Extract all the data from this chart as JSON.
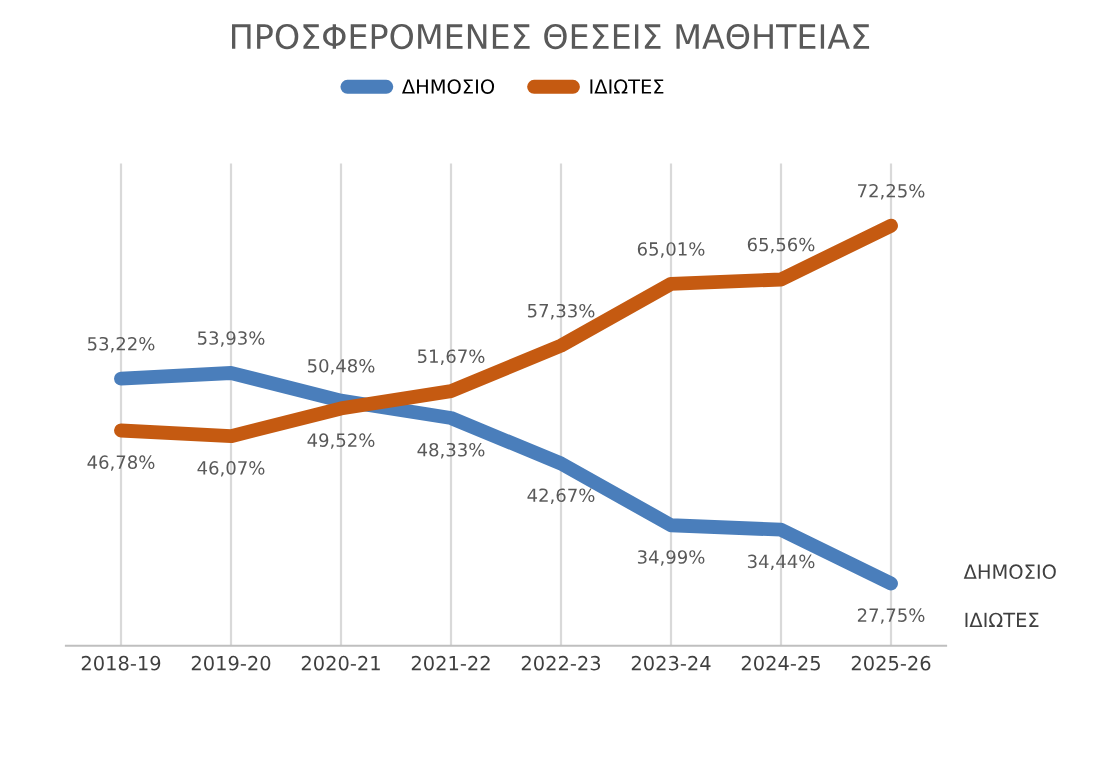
{
  "chart_data": {
    "type": "line",
    "title": "ΠΡΟΣΦΕΡΟΜΕΝΕΣ ΘΕΣΕΙΣ ΜΑΘΗΤΕΙΑΣ",
    "categories": [
      "2018-19",
      "2019-20",
      "2020-21",
      "2021-22",
      "2022-23",
      "2023-24",
      "2024-25",
      "2025-26"
    ],
    "series": [
      {
        "name": "ΔΗΜΟΣΙΟ",
        "color": "#4a7ebb",
        "values": [
          53.22,
          53.93,
          50.48,
          48.33,
          42.67,
          34.99,
          34.44,
          27.75
        ],
        "value_labels": [
          "53,22%",
          "53,93%",
          "50,48%",
          "48,33%",
          "42,67%",
          "34,99%",
          "34,44%",
          "27,75%"
        ]
      },
      {
        "name": "ΙΔΙΩΤΕΣ",
        "color": "#c55a11",
        "values": [
          46.78,
          46.07,
          49.52,
          51.67,
          57.33,
          65.01,
          65.56,
          72.25
        ],
        "value_labels": [
          "46,78%",
          "46,07%",
          "49,52%",
          "51,67%",
          "57,33%",
          "65,01%",
          "65,56%",
          "72,25%"
        ]
      }
    ],
    "ylim": [
      20,
      80
    ],
    "tick_labels": "x",
    "grid": "x",
    "legend": "top",
    "marker": "none",
    "line_style": "solid"
  }
}
